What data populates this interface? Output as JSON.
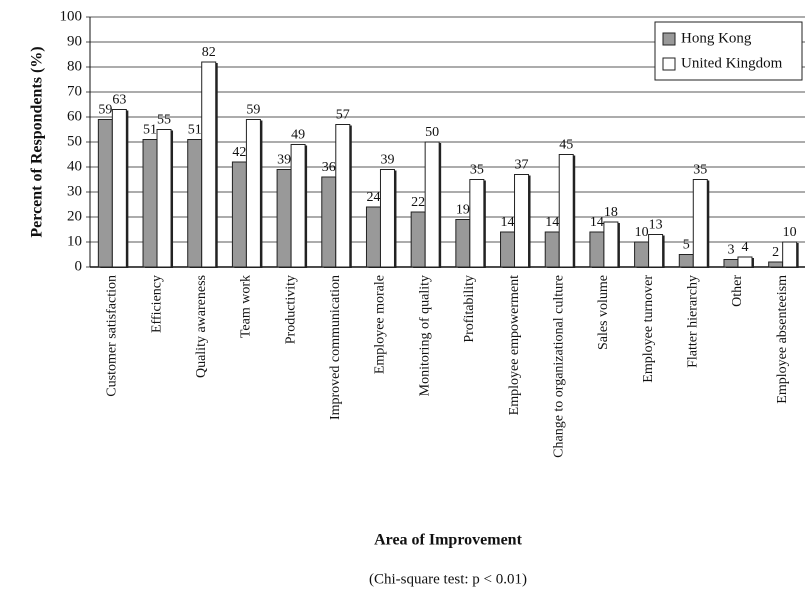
{
  "chart_data": {
    "type": "bar",
    "x_label": "Area of Improvement",
    "y_label": "Percent of Respondents (%)",
    "note": "(Chi-square test: p < 0.01)",
    "categories": [
      "Customer satisfaction",
      "Efficiency",
      "Quality awareness",
      "Team work",
      "Productivity",
      "Improved communication",
      "Employee morale",
      "Monitoring of quality",
      "Profitability",
      "Employee empowerment",
      "Change to organizational culture",
      "Sales volume",
      "Employee turnover",
      "Flatter hierarchy",
      "Other",
      "Employee absenteeism"
    ],
    "series": [
      {
        "name": "Hong Kong",
        "color": "#999999",
        "values": [
          59,
          51,
          51,
          42,
          39,
          36,
          24,
          22,
          19,
          14,
          14,
          14,
          10,
          5,
          3,
          2
        ]
      },
      {
        "name": "United Kingdom",
        "color": "#ffffff",
        "values": [
          63,
          55,
          82,
          59,
          49,
          57,
          39,
          50,
          35,
          37,
          45,
          18,
          13,
          35,
          4,
          10
        ]
      }
    ],
    "ylim": [
      0,
      100
    ],
    "yticks": [
      0,
      10,
      20,
      30,
      40,
      50,
      60,
      70,
      80,
      90,
      100
    ],
    "grid": true,
    "legend": "top-right"
  }
}
